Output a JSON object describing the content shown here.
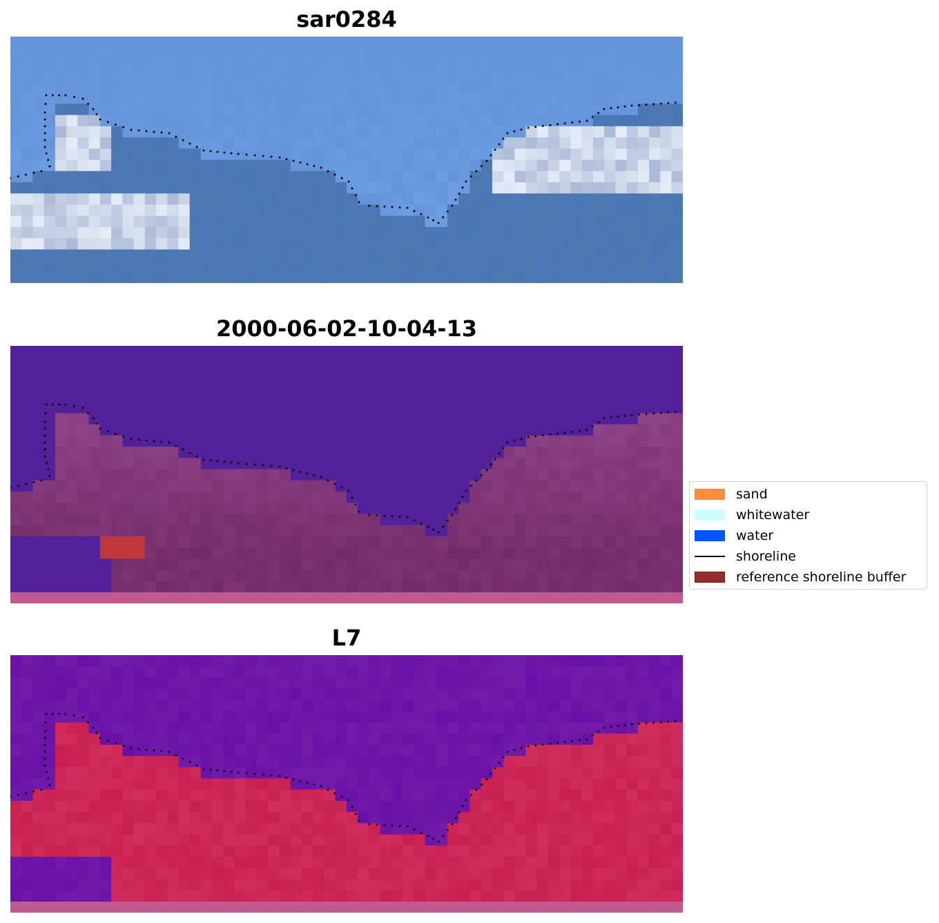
{
  "panels": [
    {
      "title": "sar0284"
    },
    {
      "title": "2000-06-02-10-04-13"
    },
    {
      "title": "L7"
    }
  ],
  "legend": {
    "items": [
      {
        "label": "sand",
        "color": "#ff8c3a",
        "kind": "patch"
      },
      {
        "label": "whitewater",
        "color": "#ccffff",
        "kind": "patch"
      },
      {
        "label": "water",
        "color": "#0055ff",
        "kind": "patch"
      },
      {
        "label": "shoreline",
        "color": "#000000",
        "kind": "line"
      },
      {
        "label": "reference shoreline buffer",
        "color": "#9a2b2b",
        "kind": "patch"
      }
    ]
  },
  "colors": {
    "rgb_water": "#4a78b8",
    "rgb_sky": "#5a8ad4",
    "rgb_whitewater": "#e6ecf6",
    "classification_background": "#52219a",
    "classification_land": "#9b4e94",
    "classification_buffer": "#c0383e",
    "index_water": "#6a10a8",
    "index_land": "#c82050",
    "bottom_strip": "#c05a90",
    "shoreline_dots": "#000000"
  }
}
